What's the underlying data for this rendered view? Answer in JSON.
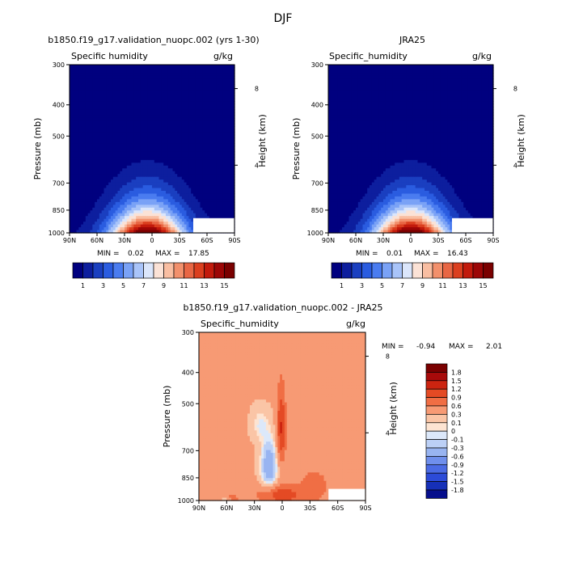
{
  "figure_title": "DJF",
  "chart_data": [
    {
      "type": "heatmap",
      "title": "b1850.f19_g17.validation_nuopc.002 (yrs 1-30)",
      "variable": "Specific humidity",
      "units": "g/kg",
      "ylabel": "Pressure (mb)",
      "ylabel_right": "Height (km)",
      "x_ticks": [
        "90N",
        "60N",
        "30N",
        "0",
        "30S",
        "60S",
        "90S"
      ],
      "y_ticks": [
        "300",
        "400",
        "500",
        "700",
        "850",
        "1000"
      ],
      "y_right_ticks": [
        "8",
        "4"
      ],
      "xlim": [
        90,
        -90
      ],
      "ylim": [
        1000,
        300
      ],
      "min_label": "MIN =",
      "min": "0.02",
      "max_label": "MAX =",
      "max": "17.85",
      "peak_latitude": 5,
      "colorbar_ticks": [
        "1",
        "3",
        "5",
        "7",
        "9",
        "11",
        "13",
        "15"
      ]
    },
    {
      "type": "heatmap",
      "title": "JRA25",
      "variable": "Specific_humidity",
      "units": "g/kg",
      "ylabel": "Pressure (mb)",
      "ylabel_right": "Height (km)",
      "x_ticks": [
        "90N",
        "60N",
        "30N",
        "0",
        "30S",
        "60S",
        "90S"
      ],
      "y_ticks": [
        "300",
        "400",
        "500",
        "700",
        "850",
        "1000"
      ],
      "y_right_ticks": [
        "8",
        "4"
      ],
      "xlim": [
        90,
        -90
      ],
      "ylim": [
        1000,
        300
      ],
      "min_label": "MIN =",
      "min": "0.01",
      "max_label": "MAX =",
      "max": "16.43",
      "peak_latitude": 0,
      "colorbar_ticks": [
        "1",
        "3",
        "5",
        "7",
        "9",
        "11",
        "13",
        "15"
      ]
    },
    {
      "type": "heatmap",
      "title": "b1850.f19_g17.validation_nuopc.002 - JRA25",
      "variable": "Specific_humidity",
      "units": "g/kg",
      "ylabel": "Pressure (mb)",
      "ylabel_right": "Height (km)",
      "x_ticks": [
        "90N",
        "60N",
        "30N",
        "0",
        "30S",
        "60S",
        "90S"
      ],
      "y_ticks": [
        "300",
        "400",
        "500",
        "700",
        "850",
        "1000"
      ],
      "y_right_ticks": [
        "8",
        "4"
      ],
      "xlim": [
        90,
        -90
      ],
      "ylim": [
        1000,
        300
      ],
      "min_label": "MIN =",
      "min": "-0.94",
      "max_label": "MAX =",
      "max": "2.01",
      "colorbar_ticks": [
        "1.8",
        "1.5",
        "1.2",
        "0.9",
        "0.6",
        "0.3",
        "0.1",
        "0",
        "-0.1",
        "-0.3",
        "-0.6",
        "-0.9",
        "-1.2",
        "-1.5",
        "-1.8"
      ]
    }
  ],
  "colors": {
    "seq": [
      "#00007f",
      "#0d1e9e",
      "#1a3fc0",
      "#2a5ce0",
      "#4a7cf0",
      "#7aa2f6",
      "#a9c4f9",
      "#dbe6fb",
      "#fbe2d6",
      "#f9bea2",
      "#f2906c",
      "#e86644",
      "#db3f1f",
      "#c21a0c",
      "#9c0606",
      "#7a0000"
    ],
    "div": [
      "#7a0000",
      "#a80a0a",
      "#cc2410",
      "#e44a24",
      "#f06e44",
      "#f79a74",
      "#fac5a6",
      "#fde4d2",
      "#dce8fa",
      "#bcd0f6",
      "#98b4f1",
      "#6f8fec",
      "#4b6be4",
      "#2c4bd8",
      "#1630b8",
      "#060e8c"
    ]
  }
}
